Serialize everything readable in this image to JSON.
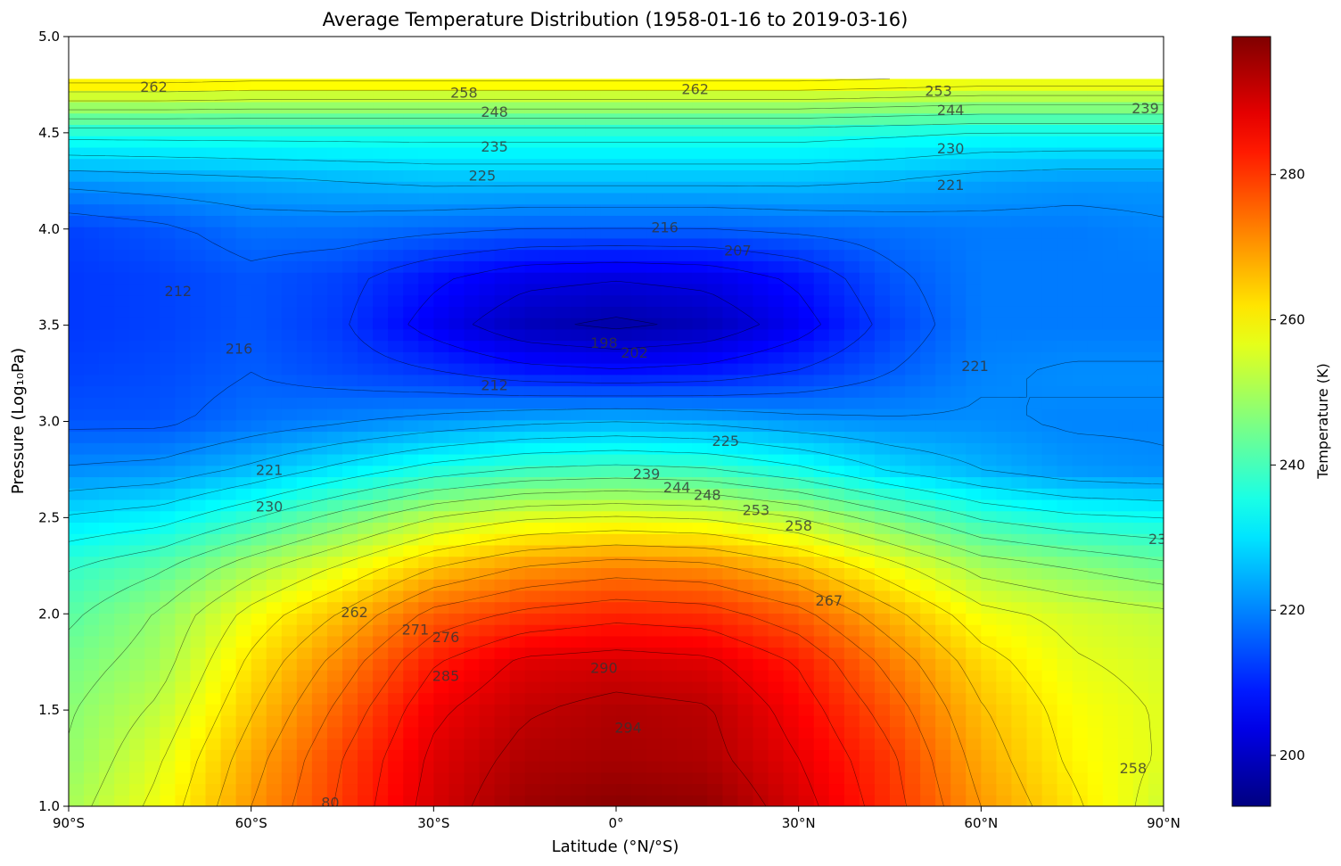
{
  "chart_data": {
    "type": "heatmap",
    "title": "Average Temperature Distribution (1958-01-16 to 2019-03-16)",
    "xlabel": "Latitude (°N/°S)",
    "ylabel": "Pressure (Log₁₀Pa)",
    "colorbar_label": "Temperature (K)",
    "colormap": "jet",
    "xlim": [
      -90,
      90
    ],
    "ylim": [
      1.0,
      5.0
    ],
    "data_top": 4.78,
    "clim": [
      193,
      299
    ],
    "x_ticks": [
      {
        "value": -90,
        "label": "90°S"
      },
      {
        "value": -60,
        "label": "60°S"
      },
      {
        "value": -30,
        "label": "30°S"
      },
      {
        "value": 0,
        "label": "0°"
      },
      {
        "value": 30,
        "label": "30°N"
      },
      {
        "value": 60,
        "label": "60°N"
      },
      {
        "value": 90,
        "label": "90°N"
      }
    ],
    "y_ticks": [
      {
        "value": 1.0,
        "label": "1.0"
      },
      {
        "value": 1.5,
        "label": "1.5"
      },
      {
        "value": 2.0,
        "label": "2.0"
      },
      {
        "value": 2.5,
        "label": "2.5"
      },
      {
        "value": 3.0,
        "label": "3.0"
      },
      {
        "value": 3.5,
        "label": "3.5"
      },
      {
        "value": 4.0,
        "label": "4.0"
      },
      {
        "value": 4.5,
        "label": "4.5"
      },
      {
        "value": 5.0,
        "label": "5.0"
      }
    ],
    "colorbar_ticks": [
      {
        "value": 200,
        "label": "200"
      },
      {
        "value": 220,
        "label": "220"
      },
      {
        "value": 240,
        "label": "240"
      },
      {
        "value": 260,
        "label": "260"
      },
      {
        "value": 280,
        "label": "280"
      }
    ],
    "lat_grid": [
      -90,
      -75,
      -60,
      -45,
      -30,
      -15,
      0,
      15,
      30,
      45,
      60,
      75,
      90
    ],
    "pressure_grid": [
      1.0,
      1.25,
      1.5,
      1.75,
      2.0,
      2.25,
      2.5,
      2.75,
      3.0,
      3.25,
      3.5,
      3.75,
      4.0,
      4.25,
      4.5,
      4.78
    ],
    "temperature": [
      [
        250,
        258,
        270,
        280,
        290,
        296,
        298,
        297,
        290,
        281,
        270,
        262,
        254
      ],
      [
        248,
        256,
        268,
        279,
        289,
        294,
        295,
        294,
        288,
        280,
        268,
        260,
        256
      ],
      [
        247,
        253,
        265,
        276,
        287,
        292,
        294,
        293,
        286,
        277,
        266,
        259,
        256
      ],
      [
        245,
        250,
        262,
        272,
        283,
        289,
        290,
        289,
        283,
        273,
        263,
        257,
        255
      ],
      [
        242,
        248,
        258,
        266,
        276,
        280,
        282,
        281,
        276,
        267,
        258,
        255,
        253
      ],
      [
        238,
        242,
        250,
        257,
        265,
        270,
        272,
        271,
        266,
        258,
        250,
        247,
        244
      ],
      [
        230,
        232,
        238,
        245,
        252,
        256,
        257,
        256,
        252,
        245,
        238,
        235,
        234
      ],
      [
        221,
        222,
        226,
        231,
        236,
        239,
        240,
        239,
        235,
        229,
        225,
        222,
        221
      ],
      [
        215,
        215,
        218,
        220,
        222,
        224,
        225,
        224,
        222,
        221,
        221,
        220,
        220
      ],
      [
        213,
        214,
        216,
        214,
        212,
        209,
        208,
        209,
        212,
        216,
        220,
        221,
        221
      ],
      [
        212,
        213,
        215,
        212,
        205,
        199,
        197,
        199,
        205,
        213,
        219,
        219,
        219
      ],
      [
        212,
        213,
        215,
        213,
        208,
        204,
        203,
        204,
        208,
        215,
        219,
        219,
        219
      ],
      [
        213,
        215,
        218,
        218,
        217,
        216,
        216,
        216,
        217,
        218,
        219,
        219,
        220
      ],
      [
        222,
        223,
        224,
        225,
        226,
        226,
        226,
        226,
        226,
        225,
        223,
        222,
        222
      ],
      [
        236,
        236,
        236,
        236,
        236,
        236,
        236,
        236,
        236,
        235,
        234,
        234,
        234
      ],
      [
        263,
        263,
        262,
        262,
        262,
        262,
        262,
        262,
        262,
        261,
        260,
        260,
        260
      ]
    ],
    "contour_labels": [
      {
        "text": "262",
        "lat": -76,
        "p": 4.74
      },
      {
        "text": "258",
        "lat": -25,
        "p": 4.71
      },
      {
        "text": "262",
        "lat": 13,
        "p": 4.73
      },
      {
        "text": "253",
        "lat": 53,
        "p": 4.72
      },
      {
        "text": "248",
        "lat": -20,
        "p": 4.61
      },
      {
        "text": "244",
        "lat": 55,
        "p": 4.62
      },
      {
        "text": "239",
        "lat": 87,
        "p": 4.63
      },
      {
        "text": "235",
        "lat": -20,
        "p": 4.43
      },
      {
        "text": "230",
        "lat": 55,
        "p": 4.42
      },
      {
        "text": "225",
        "lat": -22,
        "p": 4.28
      },
      {
        "text": "221",
        "lat": 55,
        "p": 4.23
      },
      {
        "text": "216",
        "lat": 8,
        "p": 4.01
      },
      {
        "text": "207",
        "lat": 20,
        "p": 3.89
      },
      {
        "text": "212",
        "lat": -72,
        "p": 3.68
      },
      {
        "text": "216",
        "lat": -62,
        "p": 3.38
      },
      {
        "text": "198",
        "lat": -2,
        "p": 3.41
      },
      {
        "text": "202",
        "lat": 3,
        "p": 3.36
      },
      {
        "text": "221",
        "lat": 59,
        "p": 3.29
      },
      {
        "text": "212",
        "lat": -20,
        "p": 3.19
      },
      {
        "text": "225",
        "lat": 18,
        "p": 2.9
      },
      {
        "text": "221",
        "lat": -57,
        "p": 2.75
      },
      {
        "text": "239",
        "lat": 5,
        "p": 2.73
      },
      {
        "text": "244",
        "lat": 10,
        "p": 2.66
      },
      {
        "text": "248",
        "lat": 15,
        "p": 2.62
      },
      {
        "text": "230",
        "lat": -57,
        "p": 2.56
      },
      {
        "text": "253",
        "lat": 23,
        "p": 2.54
      },
      {
        "text": "258",
        "lat": 30,
        "p": 2.46
      },
      {
        "text": "23",
        "lat": 89,
        "p": 2.39
      },
      {
        "text": "267",
        "lat": 35,
        "p": 2.07
      },
      {
        "text": "262",
        "lat": -43,
        "p": 2.01
      },
      {
        "text": "271",
        "lat": -33,
        "p": 1.92
      },
      {
        "text": "276",
        "lat": -28,
        "p": 1.88
      },
      {
        "text": "290",
        "lat": -2,
        "p": 1.72
      },
      {
        "text": "285",
        "lat": -28,
        "p": 1.68
      },
      {
        "text": "294",
        "lat": 2,
        "p": 1.41
      },
      {
        "text": "258",
        "lat": 85,
        "p": 1.2
      },
      {
        "text": "80",
        "lat": -47,
        "p": 1.02
      }
    ]
  }
}
